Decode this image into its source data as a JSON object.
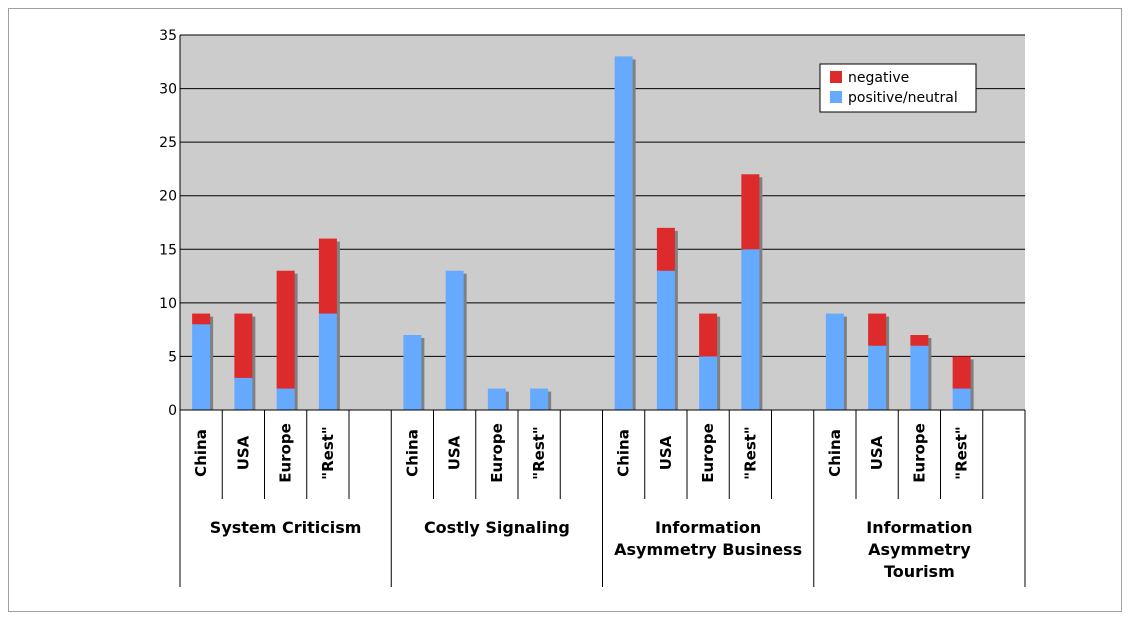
{
  "chart_data": {
    "type": "bar",
    "stacked": true,
    "title": "",
    "xlabel": "",
    "ylabel": "",
    "ylim": [
      0,
      35
    ],
    "yticks": [
      0,
      5,
      10,
      15,
      20,
      25,
      30,
      35
    ],
    "grid": true,
    "legend_position": "top-right",
    "groups": [
      "System Criticism",
      "Costly Signaling",
      "Information Asymmetry Business",
      "Information Asymmetry Tourism"
    ],
    "group_label_lines": [
      [
        "System Criticism"
      ],
      [
        "Costly Signaling"
      ],
      [
        "Information",
        "Asymmetry Business"
      ],
      [
        "Information",
        "Asymmetry",
        "Tourism"
      ]
    ],
    "categories": [
      "China",
      "USA",
      "Europe",
      "\"Rest\""
    ],
    "series": [
      {
        "name": "positive/neutral",
        "color": "#66aaff",
        "values": [
          [
            8,
            3,
            2,
            9
          ],
          [
            7,
            13,
            2,
            2
          ],
          [
            33,
            13,
            5,
            15
          ],
          [
            9,
            6,
            6,
            2
          ]
        ]
      },
      {
        "name": "negative",
        "color": "#dd2a2a",
        "values": [
          [
            1,
            6,
            11,
            7
          ],
          [
            0,
            0,
            0,
            0
          ],
          [
            0,
            4,
            4,
            7
          ],
          [
            0,
            3,
            1,
            3
          ]
        ]
      }
    ],
    "legend": [
      "negative",
      "positive/neutral"
    ],
    "colors": {
      "plot_background": "#cccccc",
      "gridline": "#000000",
      "shadow": "#808080"
    }
  }
}
